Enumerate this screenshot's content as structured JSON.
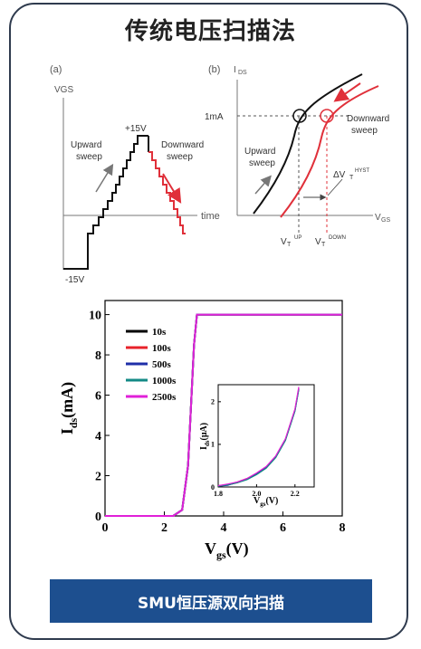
{
  "title": "传统电压扫描法",
  "footer_label": "SMU恒压源双向扫描",
  "diagram_a": {
    "panel_label": "(a)",
    "y_axis_label": "VGS",
    "x_axis_label": "time",
    "top_level": "+15V",
    "bottom_level": "-15V",
    "upward_label_line1": "Upward",
    "upward_label_line2": "sweep",
    "downward_label_line1": "Downward",
    "downward_label_line2": "sweep"
  },
  "diagram_b": {
    "panel_label": "(b)",
    "y_axis_label": "I",
    "y_axis_sub": "DS",
    "x_axis_label": "V",
    "x_axis_sub": "GS",
    "current_level": "1mA",
    "upward_label_line1": "Upward",
    "upward_label_line2": "sweep",
    "downward_label_line1": "Downward",
    "downward_label_line2": "sweep",
    "hyst_label": "ΔV",
    "hyst_sub": "T",
    "hyst_sup": "HYST",
    "vt_up_main": "V",
    "vt_up_sub": "T",
    "vt_up_sup": "UP",
    "vt_down_main": "V",
    "vt_down_sub": "T",
    "vt_down_sup": "DOWN",
    "colors": {
      "upward": "#111111",
      "downward": "#e0303a",
      "arrow_gray": "#777777"
    }
  },
  "chart_data": [
    {
      "type": "line",
      "xlabel_main": "V",
      "xlabel_sub": "gs",
      "xlabel_unit": "(V)",
      "ylabel_main": "I",
      "ylabel_sub": "ds",
      "ylabel_unit": "(mA)",
      "xlim": [
        0,
        8
      ],
      "ylim": [
        0,
        10.7
      ],
      "x_ticks": [
        0,
        2,
        4,
        6,
        8
      ],
      "y_ticks": [
        0,
        2,
        4,
        6,
        8,
        10
      ],
      "legend_position": "top-left",
      "series": [
        {
          "name": "10s",
          "color": "#000000",
          "x": [
            0,
            2.3,
            2.6,
            2.8,
            2.9,
            3.0,
            3.1,
            8
          ],
          "y": [
            0,
            0,
            0.3,
            2.5,
            5.5,
            8.5,
            10,
            10
          ]
        },
        {
          "name": "100s",
          "color": "#e8222a",
          "x": [
            0,
            2.3,
            2.6,
            2.8,
            2.9,
            3.0,
            3.1,
            8
          ],
          "y": [
            0,
            0,
            0.3,
            2.5,
            5.5,
            8.5,
            10,
            10
          ]
        },
        {
          "name": "500s",
          "color": "#1f2fa8",
          "x": [
            0,
            2.3,
            2.6,
            2.8,
            2.9,
            3.0,
            3.1,
            8
          ],
          "y": [
            0,
            0,
            0.3,
            2.5,
            5.5,
            8.5,
            10,
            10
          ]
        },
        {
          "name": "1000s",
          "color": "#138a86",
          "x": [
            0,
            2.3,
            2.6,
            2.8,
            2.9,
            3.0,
            3.1,
            8
          ],
          "y": [
            0,
            0,
            0.3,
            2.5,
            5.5,
            8.5,
            10,
            10
          ]
        },
        {
          "name": "2500s",
          "color": "#e020d8",
          "x": [
            0,
            2.3,
            2.6,
            2.8,
            2.9,
            3.0,
            3.1,
            8
          ],
          "y": [
            0,
            0,
            0.3,
            2.5,
            5.5,
            8.5,
            10,
            10
          ]
        }
      ]
    },
    {
      "type": "line",
      "xlabel_main": "V",
      "xlabel_sub": "gs",
      "xlabel_unit": "(V)",
      "ylabel_main": "I",
      "ylabel_sub": "ds",
      "ylabel_unit": "(μA)",
      "xlim": [
        1.8,
        2.3
      ],
      "ylim": [
        0,
        2.4
      ],
      "x_ticks": [
        1.8,
        2.0,
        2.2
      ],
      "y_ticks": [
        0,
        1,
        2
      ],
      "series": [
        {
          "name": "10s",
          "color": "#000000",
          "x": [
            1.8,
            1.85,
            1.9,
            1.95,
            2.0,
            2.05,
            2.1,
            2.15,
            2.2,
            2.22
          ],
          "y": [
            0.02,
            0.05,
            0.1,
            0.18,
            0.3,
            0.45,
            0.7,
            1.1,
            1.8,
            2.3
          ]
        },
        {
          "name": "100s",
          "color": "#e8222a",
          "x": [
            1.8,
            1.85,
            1.9,
            1.95,
            2.0,
            2.05,
            2.1,
            2.15,
            2.2,
            2.22
          ],
          "y": [
            0.03,
            0.06,
            0.12,
            0.2,
            0.32,
            0.47,
            0.72,
            1.12,
            1.82,
            2.32
          ]
        },
        {
          "name": "500s",
          "color": "#1f2fa8",
          "x": [
            1.8,
            1.85,
            1.9,
            1.95,
            2.0,
            2.05,
            2.1,
            2.15,
            2.2,
            2.22
          ],
          "y": [
            0.02,
            0.04,
            0.11,
            0.19,
            0.31,
            0.46,
            0.71,
            1.1,
            1.79,
            2.3
          ]
        },
        {
          "name": "1000s",
          "color": "#138a86",
          "x": [
            1.8,
            1.85,
            1.9,
            1.95,
            2.0,
            2.05,
            2.1,
            2.15,
            2.2,
            2.22
          ],
          "y": [
            0.02,
            0.05,
            0.1,
            0.17,
            0.29,
            0.44,
            0.69,
            1.09,
            1.78,
            2.28
          ]
        },
        {
          "name": "2500s",
          "color": "#e020d8",
          "x": [
            1.8,
            1.85,
            1.9,
            1.95,
            2.0,
            2.05,
            2.1,
            2.15,
            2.2,
            2.22
          ],
          "y": [
            0.03,
            0.07,
            0.12,
            0.2,
            0.33,
            0.48,
            0.73,
            1.13,
            1.83,
            2.35
          ]
        }
      ]
    }
  ]
}
